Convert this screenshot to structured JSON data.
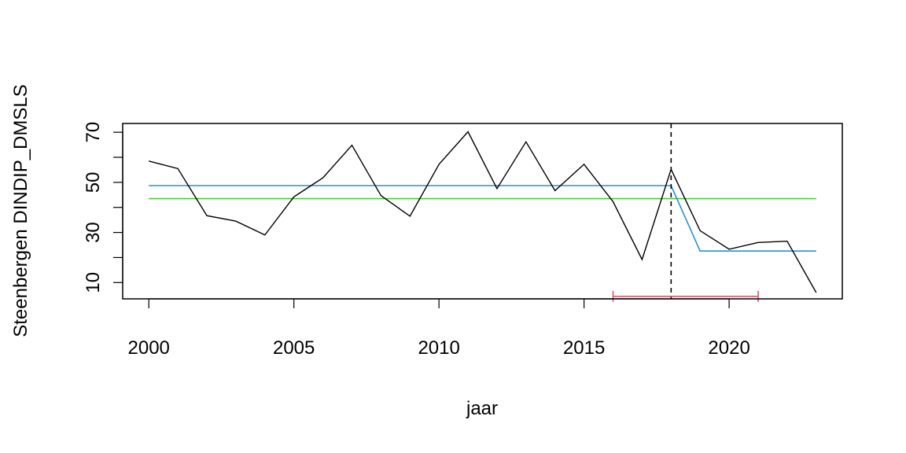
{
  "chart_data": {
    "type": "line",
    "title": "",
    "xlabel": "jaar",
    "ylabel": "Steenbergen DINDIP_DMSLS",
    "xlim": [
      1999.1,
      2023.9
    ],
    "ylim": [
      3.5,
      73.5
    ],
    "x_ticks": [
      2000,
      2005,
      2010,
      2015,
      2020
    ],
    "y_ticks": [
      10,
      30,
      50,
      70
    ],
    "grid": false,
    "series": [
      {
        "color": "#000000",
        "x": [
          2000,
          2001,
          2002,
          2003,
          2004,
          2005,
          2006,
          2007,
          2008,
          2009,
          2010,
          2011,
          2012,
          2013,
          2014,
          2015,
          2016,
          2017,
          2018,
          2019,
          2020,
          2021,
          2022,
          2023
        ],
        "values": [
          58.5,
          55.5,
          36.7,
          34.5,
          29.0,
          44.2,
          51.8,
          64.8,
          44.7,
          36.5,
          57.2,
          70.2,
          47.5,
          66.2,
          46.7,
          57.2,
          42.3,
          19.2,
          55.2,
          30.7,
          23.3,
          26.0,
          26.5,
          6.0
        ]
      },
      {
        "color": "#2a8fd6",
        "x": [
          2000,
          2018,
          2019,
          2023
        ],
        "values": [
          48.7,
          48.7,
          22.6,
          22.6
        ]
      },
      {
        "color": "#4fc93c",
        "x": [
          2000,
          2023
        ],
        "values": [
          43.5,
          43.5
        ]
      }
    ],
    "breakpoint": {
      "x": 2018,
      "color": "#000000",
      "style": "dashed"
    },
    "confidence_interval": {
      "x_start": 2016,
      "x_end": 2021,
      "y": 4.5,
      "color": "#df536b"
    }
  }
}
